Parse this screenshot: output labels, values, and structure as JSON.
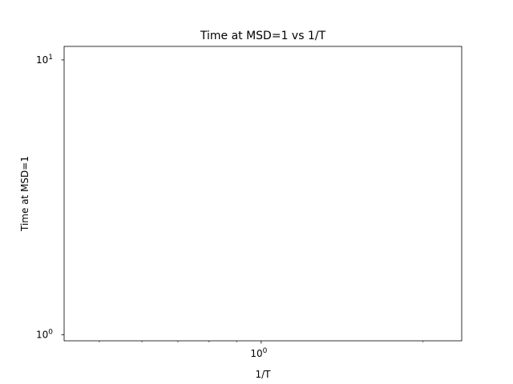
{
  "chart_data": {
    "type": "scatter",
    "title": "Time at MSD=1 vs 1/T",
    "xlabel": "1/T",
    "ylabel": "Time at MSD=1",
    "xscale": "log",
    "yscale": "log",
    "xlim": [
      0.43,
      2.36
    ],
    "ylim": [
      0.95,
      11.2
    ],
    "x_major_ticks": [
      {
        "value": 1,
        "base": "10",
        "exp": "0"
      }
    ],
    "x_minor_ticks": [
      0.5,
      0.6,
      0.7,
      0.8,
      0.9,
      2
    ],
    "y_major_ticks": [
      {
        "value": 1,
        "base": "10",
        "exp": "0"
      },
      {
        "value": 10,
        "base": "10",
        "exp": "1"
      }
    ],
    "y_minor_ticks": [],
    "grid": false,
    "series": [
      {
        "x": [],
        "y": []
      }
    ]
  },
  "colors": {
    "axes": "#000000",
    "background": "#ffffff"
  }
}
